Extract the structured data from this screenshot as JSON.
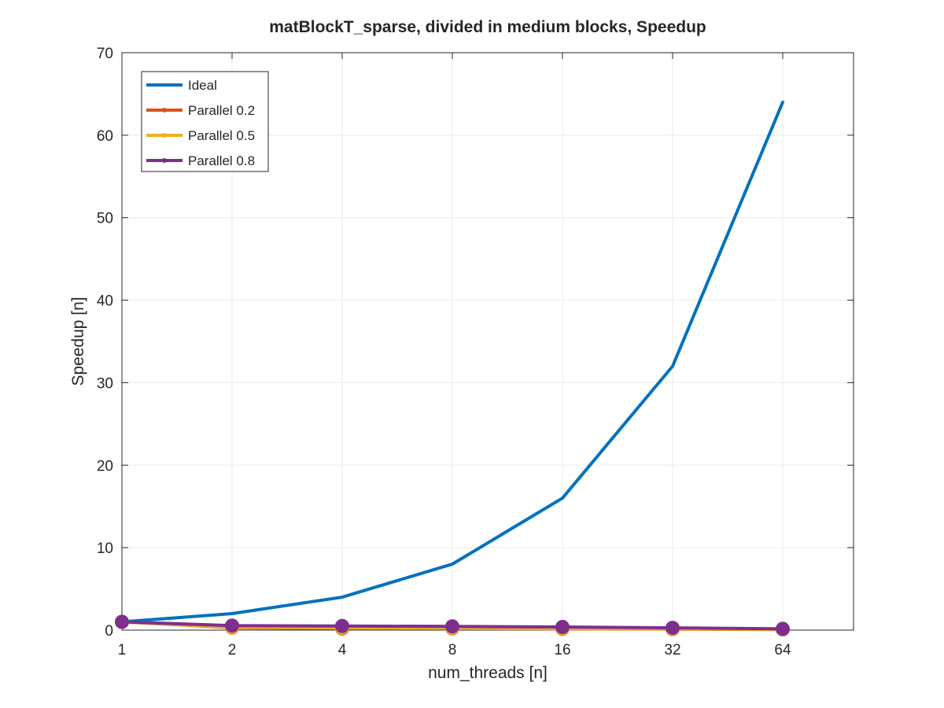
{
  "chart_data": {
    "type": "line",
    "title": "matBlockT_sparse, divided in medium blocks, Speedup",
    "xlabel": "num_threads [n]",
    "ylabel": "Speedup [n]",
    "x_tick_labels": [
      "1",
      "2",
      "4",
      "8",
      "16",
      "32",
      "64"
    ],
    "y_tick_labels": [
      "0",
      "10",
      "20",
      "30",
      "40",
      "50",
      "60",
      "70"
    ],
    "ylim": [
      0,
      70
    ],
    "grid": true,
    "legend_position": "top-left",
    "series": [
      {
        "name": "Ideal",
        "color": "#0072BD",
        "marker": "none",
        "values": [
          1,
          2,
          4,
          8,
          16,
          32,
          64
        ]
      },
      {
        "name": "Parallel 0.2",
        "color": "#D95319",
        "marker": "circle",
        "values": [
          1,
          0.3,
          0.2,
          0.2,
          0.15,
          0.12,
          0.08
        ]
      },
      {
        "name": "Parallel 0.5",
        "color": "#EDB120",
        "marker": "circle",
        "values": [
          1,
          0.35,
          0.3,
          0.25,
          0.2,
          0.15,
          0.1
        ]
      },
      {
        "name": "Parallel 0.8",
        "color": "#7E2F8E",
        "marker": "circle",
        "values": [
          1,
          0.55,
          0.5,
          0.45,
          0.38,
          0.28,
          0.15
        ]
      }
    ]
  }
}
